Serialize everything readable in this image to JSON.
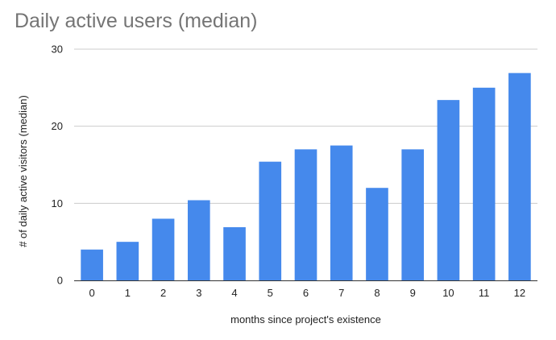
{
  "chart_data": {
    "type": "bar",
    "title": "Daily active users (median)",
    "xlabel": "months since project's existence",
    "ylabel": "# of daily active visitors (median)",
    "categories": [
      "0",
      "1",
      "2",
      "3",
      "4",
      "5",
      "6",
      "7",
      "8",
      "9",
      "10",
      "11",
      "12"
    ],
    "values": [
      4,
      5,
      8,
      10.4,
      6.9,
      15.4,
      17,
      17.5,
      12,
      17,
      23.4,
      25,
      26.9
    ],
    "ylim": [
      0,
      30
    ],
    "yticks": [
      0,
      10,
      20,
      30
    ],
    "grid": true,
    "legend": "none",
    "bar_color": "#4589ec",
    "grid_color": "#cccccc",
    "axis_color": "#333333"
  }
}
